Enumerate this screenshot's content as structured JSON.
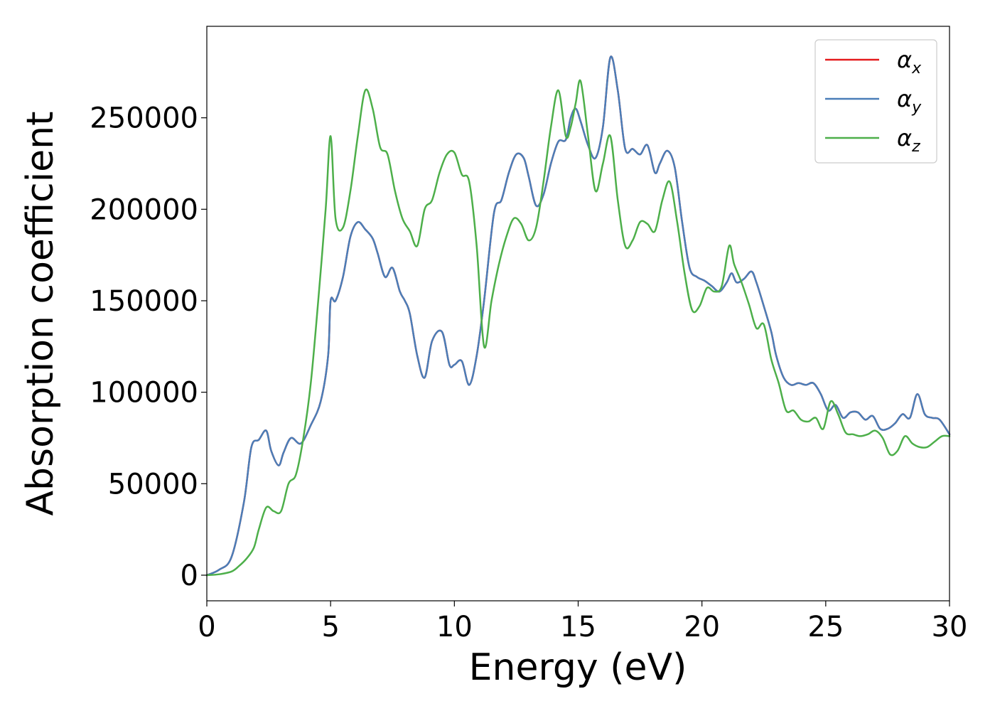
{
  "chart_data": {
    "type": "line",
    "title": "",
    "xlabel": "Energy (eV)",
    "ylabel": "Absorption coefficient",
    "xlim": [
      0,
      30
    ],
    "ylim": [
      -14000,
      300000
    ],
    "xticks": [
      0,
      5,
      10,
      15,
      20,
      25,
      30
    ],
    "yticks": [
      0,
      50000,
      100000,
      150000,
      200000,
      250000
    ],
    "grid": false,
    "legend_placement": "top-right",
    "series": [
      {
        "name": "α",
        "subscript": "x",
        "color": "#e41a1c",
        "x": [
          0,
          0.5,
          1,
          1.5,
          1.8,
          2.1,
          2.4,
          2.6,
          2.9,
          3.1,
          3.4,
          3.8,
          4.2,
          4.6,
          4.9,
          5.0,
          5.2,
          5.5,
          5.8,
          6.1,
          6.4,
          6.7,
          6.9,
          7.2,
          7.5,
          7.8,
          8.0,
          8.2,
          8.5,
          8.8,
          9.1,
          9.5,
          9.8,
          10.0,
          10.3,
          10.6,
          10.9,
          11.2,
          11.6,
          11.9,
          12.2,
          12.5,
          12.8,
          13.0,
          13.3,
          13.6,
          13.9,
          14.2,
          14.5,
          14.7,
          14.9,
          15.1,
          15.4,
          15.7,
          16.0,
          16.3,
          16.6,
          16.9,
          17.2,
          17.5,
          17.8,
          18.1,
          18.3,
          18.6,
          18.9,
          19.2,
          19.5,
          19.8,
          20.1,
          20.4,
          20.7,
          21.0,
          21.2,
          21.4,
          21.7,
          22.0,
          22.2,
          22.5,
          22.8,
          23.0,
          23.3,
          23.6,
          23.9,
          24.2,
          24.5,
          24.8,
          25.1,
          25.4,
          25.7,
          26.0,
          26.3,
          26.6,
          26.9,
          27.2,
          27.5,
          27.8,
          28.1,
          28.4,
          28.7,
          29.0,
          29.3,
          29.6,
          30.0
        ],
        "y": [
          0,
          3000,
          10000,
          40000,
          70000,
          74000,
          79000,
          68000,
          60000,
          67000,
          75000,
          72000,
          82000,
          95000,
          120000,
          150000,
          150000,
          163000,
          185000,
          193000,
          189000,
          184000,
          176000,
          163000,
          168000,
          155000,
          150000,
          143000,
          120000,
          108000,
          128000,
          133000,
          115000,
          115000,
          117000,
          104000,
          120000,
          150000,
          198000,
          205000,
          220000,
          230000,
          228000,
          218000,
          202000,
          208000,
          225000,
          237000,
          238000,
          250000,
          255000,
          248000,
          235000,
          228000,
          245000,
          283000,
          265000,
          233000,
          233000,
          230000,
          235000,
          220000,
          225000,
          232000,
          223000,
          193000,
          168000,
          163000,
          161000,
          158000,
          155000,
          160000,
          165000,
          160000,
          162000,
          166000,
          160000,
          147000,
          133000,
          120000,
          108000,
          104000,
          105000,
          104000,
          105000,
          99000,
          90000,
          93000,
          86000,
          89000,
          89000,
          85000,
          87000,
          80000,
          80000,
          83000,
          88000,
          86000,
          99000,
          88000,
          86000,
          85000,
          77000
        ]
      },
      {
        "name": "α",
        "subscript": "y",
        "color": "#4a7eb8",
        "x": [
          0,
          0.5,
          1,
          1.5,
          1.8,
          2.1,
          2.4,
          2.6,
          2.9,
          3.1,
          3.4,
          3.8,
          4.2,
          4.6,
          4.9,
          5.0,
          5.2,
          5.5,
          5.8,
          6.1,
          6.4,
          6.7,
          6.9,
          7.2,
          7.5,
          7.8,
          8.0,
          8.2,
          8.5,
          8.8,
          9.1,
          9.5,
          9.8,
          10.0,
          10.3,
          10.6,
          10.9,
          11.2,
          11.6,
          11.9,
          12.2,
          12.5,
          12.8,
          13.0,
          13.3,
          13.6,
          13.9,
          14.2,
          14.5,
          14.7,
          14.9,
          15.1,
          15.4,
          15.7,
          16.0,
          16.3,
          16.6,
          16.9,
          17.2,
          17.5,
          17.8,
          18.1,
          18.3,
          18.6,
          18.9,
          19.2,
          19.5,
          19.8,
          20.1,
          20.4,
          20.7,
          21.0,
          21.2,
          21.4,
          21.7,
          22.0,
          22.2,
          22.5,
          22.8,
          23.0,
          23.3,
          23.6,
          23.9,
          24.2,
          24.5,
          24.8,
          25.1,
          25.4,
          25.7,
          26.0,
          26.3,
          26.6,
          26.9,
          27.2,
          27.5,
          27.8,
          28.1,
          28.4,
          28.7,
          29.0,
          29.3,
          29.6,
          30.0
        ],
        "y": [
          0,
          3000,
          10000,
          40000,
          70000,
          74000,
          79000,
          68000,
          60000,
          67000,
          75000,
          72000,
          82000,
          95000,
          120000,
          150000,
          150000,
          163000,
          185000,
          193000,
          189000,
          184000,
          176000,
          163000,
          168000,
          155000,
          150000,
          143000,
          120000,
          108000,
          128000,
          133000,
          115000,
          115000,
          117000,
          104000,
          120000,
          150000,
          198000,
          205000,
          220000,
          230000,
          228000,
          218000,
          202000,
          208000,
          225000,
          237000,
          238000,
          250000,
          255000,
          248000,
          235000,
          228000,
          245000,
          283000,
          265000,
          233000,
          233000,
          230000,
          235000,
          220000,
          225000,
          232000,
          223000,
          193000,
          168000,
          163000,
          161000,
          158000,
          155000,
          160000,
          165000,
          160000,
          162000,
          166000,
          160000,
          147000,
          133000,
          120000,
          108000,
          104000,
          105000,
          104000,
          105000,
          99000,
          90000,
          93000,
          86000,
          89000,
          89000,
          85000,
          87000,
          80000,
          80000,
          83000,
          88000,
          86000,
          99000,
          88000,
          86000,
          85000,
          77000
        ]
      },
      {
        "name": "α",
        "subscript": "z",
        "color": "#4daf4a",
        "x": [
          0,
          0.5,
          1,
          1.3,
          1.6,
          1.9,
          2.1,
          2.4,
          2.7,
          3.0,
          3.3,
          3.6,
          3.9,
          4.2,
          4.5,
          4.8,
          5.0,
          5.2,
          5.5,
          5.8,
          6.1,
          6.4,
          6.7,
          7.0,
          7.3,
          7.6,
          7.9,
          8.2,
          8.5,
          8.8,
          9.1,
          9.4,
          9.7,
          10.0,
          10.3,
          10.6,
          10.9,
          11.2,
          11.5,
          11.8,
          12.1,
          12.4,
          12.7,
          13.0,
          13.3,
          13.6,
          13.9,
          14.2,
          14.5,
          14.7,
          14.9,
          15.1,
          15.4,
          15.7,
          16.0,
          16.3,
          16.6,
          16.9,
          17.2,
          17.5,
          17.8,
          18.1,
          18.4,
          18.7,
          19.0,
          19.3,
          19.6,
          19.9,
          20.2,
          20.5,
          20.8,
          21.1,
          21.3,
          21.6,
          21.9,
          22.2,
          22.5,
          22.8,
          23.1,
          23.4,
          23.7,
          24.0,
          24.3,
          24.6,
          24.9,
          25.2,
          25.5,
          25.8,
          26.1,
          26.4,
          26.7,
          27.0,
          27.3,
          27.6,
          27.9,
          28.2,
          28.5,
          28.8,
          29.1,
          29.4,
          29.7,
          30.0
        ],
        "y": [
          0,
          500,
          2000,
          5000,
          9000,
          15000,
          25000,
          37000,
          35000,
          35000,
          50000,
          55000,
          75000,
          105000,
          150000,
          200000,
          240000,
          195000,
          190000,
          210000,
          240000,
          265000,
          255000,
          234000,
          230000,
          210000,
          195000,
          188000,
          180000,
          200000,
          205000,
          220000,
          230000,
          231000,
          219000,
          215000,
          180000,
          125000,
          150000,
          170000,
          185000,
          195000,
          192000,
          183000,
          190000,
          215000,
          245000,
          265000,
          240000,
          245000,
          258000,
          270000,
          240000,
          210000,
          225000,
          240000,
          205000,
          180000,
          183000,
          193000,
          192000,
          188000,
          205000,
          215000,
          193000,
          165000,
          145000,
          147000,
          157000,
          155000,
          158000,
          180000,
          170000,
          160000,
          148000,
          135000,
          137000,
          118000,
          105000,
          90000,
          90000,
          85000,
          84000,
          86000,
          80000,
          95000,
          88000,
          78000,
          77000,
          76000,
          77000,
          79000,
          75000,
          66000,
          68000,
          76000,
          72000,
          70000,
          70000,
          73000,
          76000,
          76000
        ]
      }
    ]
  }
}
